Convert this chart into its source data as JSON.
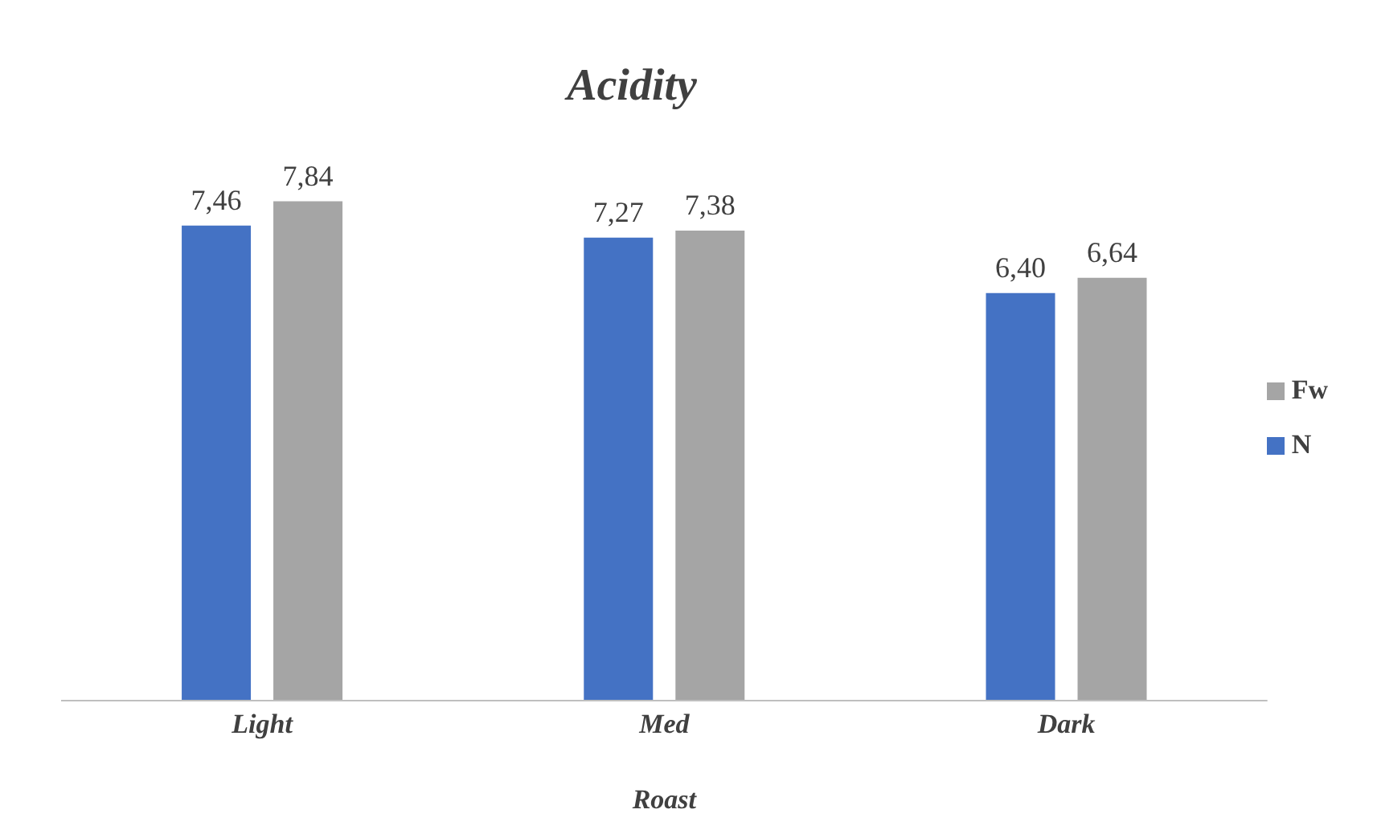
{
  "chart_data": {
    "type": "bar",
    "title": "Acidity",
    "xlabel": "Roast",
    "categories": [
      "Light",
      "Med",
      "Dark"
    ],
    "series": [
      {
        "name": "N",
        "color": "#4472c4",
        "values": [
          7.46,
          7.27,
          6.4
        ],
        "value_labels": [
          "7,46",
          "7,27",
          "6,40"
        ]
      },
      {
        "name": "Fw",
        "color": "#a5a5a5",
        "values": [
          7.84,
          7.38,
          6.64
        ],
        "value_labels": [
          "7,84",
          "7,38",
          "6,64"
        ]
      }
    ],
    "legend": "right",
    "grid": false
  }
}
